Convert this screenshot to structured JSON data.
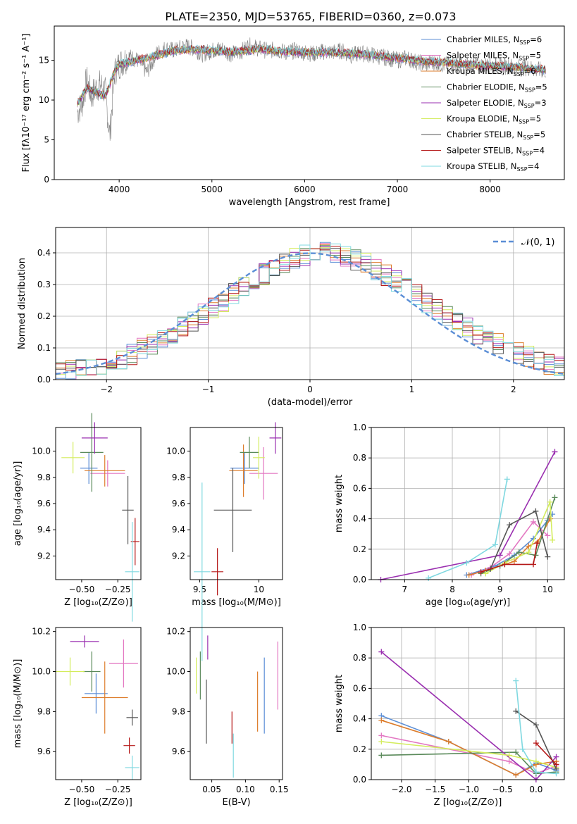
{
  "figure_title": "PLATE=2350, MJD=53765, FIBERID=0360, z=0.073",
  "models": [
    {
      "name": "Chabrier MILES",
      "color": "#5b8ed6",
      "nssp": 6
    },
    {
      "name": "Salpeter MILES",
      "color": "#e377c2",
      "nssp": 5
    },
    {
      "name": "Kroupa MILES",
      "color": "#dd7d2c",
      "nssp": 6
    },
    {
      "name": "Chabrier ELODIE",
      "color": "#5a8a5a",
      "nssp": 5
    },
    {
      "name": "Salpeter ELODIE",
      "color": "#9a2fb0",
      "nssp": 3
    },
    {
      "name": "Kroupa ELODIE",
      "color": "#d3ec5c",
      "nssp": 5
    },
    {
      "name": "Chabrier STELIB",
      "color": "#555555",
      "nssp": 5
    },
    {
      "name": "Salpeter STELIB",
      "color": "#b51818",
      "nssp": 4
    },
    {
      "name": "Kroupa STELIB",
      "color": "#7fd8e0",
      "nssp": 4
    }
  ],
  "legend_nssp_prefix": "N",
  "legend_nssp_sub": "SSP",
  "chart_data": [
    {
      "id": "spectrum",
      "type": "line",
      "xlabel": "wavelength [Angstrom, rest frame]",
      "ylabel": "Flux [fλ10⁻¹⁷ erg cm⁻² s⁻¹ A⁻¹]",
      "xlim": [
        3300,
        8800
      ],
      "ylim": [
        0,
        19.3
      ],
      "xticks": [
        4000,
        5000,
        6000,
        7000,
        8000
      ],
      "yticks": [
        0,
        5,
        10,
        15
      ],
      "data_color": "#808080",
      "data_x": [
        3550,
        3600,
        3650,
        3700,
        3750,
        3800,
        3850,
        3900,
        3950,
        4000,
        4100,
        4200,
        4300,
        4400,
        4500,
        4600,
        4700,
        4800,
        4900,
        5000,
        5100,
        5200,
        5300,
        5400,
        5500,
        5600,
        5700,
        5800,
        5900,
        6000,
        6100,
        6200,
        6300,
        6400,
        6500,
        6600,
        6700,
        6800,
        6900,
        7000,
        7100,
        7200,
        7300,
        7400,
        7500,
        7600,
        7700,
        7800,
        7900,
        8000,
        8100,
        8200,
        8300,
        8400,
        8500,
        8600
      ],
      "data_y": [
        8.5,
        9.5,
        12.5,
        10.5,
        11.5,
        12.0,
        11.0,
        5.5,
        13.5,
        14.5,
        15.5,
        15.0,
        13.5,
        15.8,
        16.5,
        16.2,
        16.8,
        16.5,
        15.8,
        16.2,
        16.5,
        15.8,
        16.0,
        16.8,
        16.5,
        16.2,
        16.3,
        16.0,
        16.2,
        16.0,
        15.8,
        16.1,
        16.0,
        16.2,
        15.6,
        15.9,
        15.7,
        15.5,
        15.3,
        15.0,
        15.3,
        14.8,
        14.5,
        14.8,
        14.4,
        14.6,
        14.2,
        14.5,
        14.3,
        14.4,
        14.2,
        14.3,
        14.0,
        14.1,
        13.8,
        13.7
      ],
      "model_x": [
        3550,
        3650,
        3750,
        3850,
        3950,
        4000,
        4200,
        4400,
        4600,
        4800,
        5000,
        5200,
        5500,
        5800,
        6000,
        6300,
        6600,
        6900,
        7200,
        7500,
        7800,
        8000,
        8300,
        8600
      ],
      "model_y": [
        9.5,
        11.5,
        11.0,
        10.5,
        13.5,
        14.5,
        15.0,
        15.6,
        16.2,
        16.4,
        16.2,
        16.0,
        16.4,
        16.1,
        16.0,
        16.0,
        15.8,
        15.4,
        15.0,
        14.7,
        14.4,
        14.3,
        14.1,
        13.8
      ]
    },
    {
      "id": "residuals",
      "type": "bar",
      "xlabel": "(data-model)/error",
      "ylabel": "Normed distribution",
      "xlim": [
        -2.5,
        2.5
      ],
      "ylim": [
        0,
        0.48
      ],
      "xticks": [
        -2,
        -1,
        0,
        1,
        2
      ],
      "yticks": [
        0.0,
        0.1,
        0.2,
        0.3,
        0.4
      ],
      "grid": true,
      "legend": {
        "label": "𝒩(0, 1)",
        "position": "top-right",
        "color": "#5b8ed6"
      },
      "bin_edges": [
        -2.5,
        -2.4,
        -2.3,
        -2.2,
        -2.1,
        -2.0,
        -1.9,
        -1.8,
        -1.7,
        -1.6,
        -1.5,
        -1.4,
        -1.3,
        -1.2,
        -1.1,
        -1.0,
        -0.9,
        -0.8,
        -0.7,
        -0.6,
        -0.5,
        -0.4,
        -0.3,
        -0.2,
        -0.1,
        0.0,
        0.1,
        0.2,
        0.3,
        0.4,
        0.5,
        0.6,
        0.7,
        0.8,
        0.9,
        1.0,
        1.1,
        1.2,
        1.3,
        1.4,
        1.5,
        1.6,
        1.7,
        1.8,
        1.9,
        2.0,
        2.1,
        2.2,
        2.3,
        2.4,
        2.5
      ],
      "hist_base": [
        0.022,
        0.028,
        0.035,
        0.042,
        0.048,
        0.058,
        0.068,
        0.082,
        0.096,
        0.112,
        0.128,
        0.146,
        0.165,
        0.185,
        0.205,
        0.226,
        0.248,
        0.27,
        0.292,
        0.313,
        0.332,
        0.35,
        0.366,
        0.38,
        0.391,
        0.398,
        0.4,
        0.397,
        0.39,
        0.379,
        0.365,
        0.348,
        0.33,
        0.31,
        0.289,
        0.267,
        0.245,
        0.223,
        0.202,
        0.182,
        0.163,
        0.145,
        0.128,
        0.112,
        0.097,
        0.084,
        0.072,
        0.061,
        0.051,
        0.043
      ]
    },
    {
      "id": "age-vs-z",
      "type": "scatter",
      "xlabel": "Z [log₁₀(Z/Z⊙)]",
      "ylabel": "age  [log₁₀(age/yr)]",
      "xlim": [
        -0.68,
        -0.09
      ],
      "ylim": [
        9.02,
        10.18
      ],
      "xticks": [
        -0.5,
        -0.25
      ],
      "xticklabels": [
        "−0.50",
        "−0.25"
      ],
      "yticks": [
        9.2,
        9.4,
        9.6,
        9.8,
        10.0
      ],
      "x": [
        -0.45,
        -0.32,
        -0.34,
        -0.43,
        -0.41,
        -0.56,
        -0.18,
        -0.13,
        -0.15
      ],
      "y": [
        9.87,
        9.83,
        9.85,
        9.99,
        10.1,
        9.95,
        9.55,
        9.31,
        9.08
      ],
      "xerr": [
        0.06,
        0.12,
        0.14,
        0.08,
        0.09,
        0.08,
        0.04,
        0.03,
        0.05
      ],
      "yerr": [
        0.12,
        0.1,
        0.12,
        0.3,
        0.12,
        0.12,
        0.26,
        0.18,
        0.38
      ]
    },
    {
      "id": "age-vs-mass",
      "type": "scatter",
      "xlabel": "mass [log₁₀(M/M⊙)]",
      "ylabel": "",
      "xlim": [
        9.42,
        10.2
      ],
      "ylim": [
        9.02,
        10.18
      ],
      "xticks": [
        9.5,
        10.0
      ],
      "yticks": [
        9.2,
        9.4,
        9.6,
        9.8,
        10.0
      ],
      "x": [
        9.88,
        10.04,
        9.87,
        9.92,
        10.14,
        10.0,
        9.78,
        9.65,
        9.52
      ],
      "y": [
        9.87,
        9.83,
        9.85,
        9.99,
        10.1,
        9.95,
        9.55,
        9.08,
        9.08
      ],
      "xerr": [
        0.12,
        0.12,
        0.12,
        0.08,
        0.05,
        0.05,
        0.16,
        0.05,
        0.07
      ],
      "yerr": [
        0.12,
        0.2,
        0.2,
        0.12,
        0.12,
        0.16,
        0.32,
        0.18,
        0.68
      ]
    },
    {
      "id": "mass-weight-vs-age",
      "type": "line",
      "xlabel": "age  [log₁₀(age/yr)]",
      "ylabel": "mass weight",
      "xlim": [
        6.3,
        10.35
      ],
      "ylim": [
        0.0,
        1.0
      ],
      "xticks": [
        7,
        8,
        9,
        10
      ],
      "yticks": [
        0.0,
        0.2,
        0.4,
        0.6,
        0.8,
        1.0
      ],
      "grid": true,
      "series": [
        {
          "x": [
            8.3,
            8.9,
            9.3,
            9.7,
            10.0,
            10.1
          ],
          "y": [
            0.03,
            0.09,
            0.16,
            0.27,
            0.39,
            0.43
          ]
        },
        {
          "x": [
            8.4,
            8.8,
            9.2,
            9.7,
            10.0
          ],
          "y": [
            0.03,
            0.08,
            0.17,
            0.38,
            0.29
          ]
        },
        {
          "x": [
            8.35,
            8.7,
            9.3,
            9.6,
            9.8,
            10.05
          ],
          "y": [
            0.03,
            0.06,
            0.12,
            0.22,
            0.25,
            0.4
          ]
        },
        {
          "x": [
            8.6,
            9.0,
            9.4,
            9.75,
            10.15
          ],
          "y": [
            0.04,
            0.09,
            0.18,
            0.16,
            0.54
          ]
        },
        {
          "x": [
            6.5,
            9.0,
            10.15
          ],
          "y": [
            0.0,
            0.16,
            0.84
          ]
        },
        {
          "x": [
            8.7,
            9.1,
            9.6,
            10.05,
            10.1
          ],
          "y": [
            0.04,
            0.11,
            0.18,
            0.51,
            0.26
          ]
        },
        {
          "x": [
            8.8,
            9.2,
            9.75,
            10.0
          ],
          "y": [
            0.07,
            0.36,
            0.45,
            0.15
          ]
        },
        {
          "x": [
            8.6,
            9.1,
            9.7,
            9.78
          ],
          "y": [
            0.05,
            0.1,
            0.1,
            0.24
          ]
        },
        {
          "x": [
            7.5,
            8.3,
            8.9,
            9.15
          ],
          "y": [
            0.01,
            0.11,
            0.23,
            0.66
          ]
        }
      ]
    },
    {
      "id": "mass-vs-z",
      "type": "scatter",
      "xlabel": "Z [log₁₀(Z/Z⊙)]",
      "ylabel": "mass [log₁₀(M/M⊙)]",
      "xlim": [
        -0.68,
        -0.09
      ],
      "ylim": [
        9.46,
        10.22
      ],
      "xticks": [
        -0.5,
        -0.25
      ],
      "xticklabels": [
        "−0.50",
        "−0.25"
      ],
      "yticks": [
        9.6,
        9.8,
        10.0,
        10.2
      ],
      "x": [
        -0.4,
        -0.21,
        -0.34,
        -0.43,
        -0.48,
        -0.58,
        -0.15,
        -0.17,
        -0.15
      ],
      "y": [
        9.89,
        10.04,
        9.87,
        10.0,
        10.15,
        10.0,
        9.77,
        9.63,
        9.52
      ],
      "xerr": [
        0.08,
        0.1,
        0.16,
        0.06,
        0.1,
        0.1,
        0.04,
        0.04,
        0.05
      ],
      "yerr": [
        0.1,
        0.12,
        0.18,
        0.1,
        0.03,
        0.07,
        0.04,
        0.04,
        0.06
      ]
    },
    {
      "id": "mass-vs-ebv",
      "type": "scatter",
      "xlabel": "E(B-V)",
      "ylabel": "",
      "xlim": [
        0.018,
        0.155
      ],
      "ylim": [
        9.46,
        10.22
      ],
      "xticks": [
        0.05,
        0.1,
        0.15
      ],
      "xticklabels": [
        "0.05",
        "0.10",
        "0.15"
      ],
      "yticks": [
        9.6,
        9.8,
        10.0,
        10.2
      ],
      "x": [
        0.128,
        0.148,
        0.118,
        0.033,
        0.044,
        0.027,
        0.042,
        0.08,
        0.082
      ],
      "y": [
        9.88,
        9.98,
        9.85,
        9.98,
        10.12,
        9.98,
        9.8,
        9.72,
        9.58
      ],
      "xerr": [
        0,
        0,
        0,
        0,
        0,
        0,
        0,
        0,
        0
      ],
      "yerr": [
        0.19,
        0.17,
        0.15,
        0.12,
        0.06,
        0.09,
        0.16,
        0.08,
        0.11
      ]
    },
    {
      "id": "mass-weight-vs-z",
      "type": "line",
      "xlabel": "Z [log₁₀(Z/Z⊙)]",
      "ylabel": "mass weight",
      "xlim": [
        -2.45,
        0.42
      ],
      "ylim": [
        0.0,
        1.0
      ],
      "xticks": [
        -2.0,
        -1.5,
        -1.0,
        -0.5,
        0.0
      ],
      "xticklabels": [
        "−2.0",
        "−1.5",
        "−1.0",
        "−0.5",
        "0.0"
      ],
      "yticks": [
        0.0,
        0.2,
        0.4,
        0.6,
        0.8,
        1.0
      ],
      "grid": true,
      "series": [
        {
          "x": [
            -2.3,
            -1.3,
            -0.3,
            0.0,
            0.3
          ],
          "y": [
            0.42,
            0.25,
            0.03,
            0.11,
            0.06
          ]
        },
        {
          "x": [
            -2.3,
            -0.4,
            0.0,
            0.3
          ],
          "y": [
            0.29,
            0.12,
            0.04,
            0.09
          ]
        },
        {
          "x": [
            -2.3,
            -1.3,
            -0.3,
            0.0,
            0.3
          ],
          "y": [
            0.39,
            0.25,
            0.03,
            0.1,
            0.12
          ]
        },
        {
          "x": [
            -2.3,
            -0.3,
            0.0,
            0.3
          ],
          "y": [
            0.16,
            0.18,
            0.04,
            0.05
          ]
        },
        {
          "x": [
            -2.3,
            0.0,
            0.3
          ],
          "y": [
            0.84,
            0.0,
            0.15
          ]
        },
        {
          "x": [
            -2.3,
            -0.4,
            0.0,
            0.3
          ],
          "y": [
            0.25,
            0.16,
            0.12,
            0.08
          ]
        },
        {
          "x": [
            -0.3,
            0.0,
            0.3
          ],
          "y": [
            0.45,
            0.36,
            0.07
          ]
        },
        {
          "x": [
            0.0,
            0.3
          ],
          "y": [
            0.24,
            0.1
          ]
        },
        {
          "x": [
            -0.3,
            -0.2,
            0.0,
            0.3
          ],
          "y": [
            0.65,
            0.2,
            0.05,
            0.04
          ]
        }
      ]
    }
  ]
}
